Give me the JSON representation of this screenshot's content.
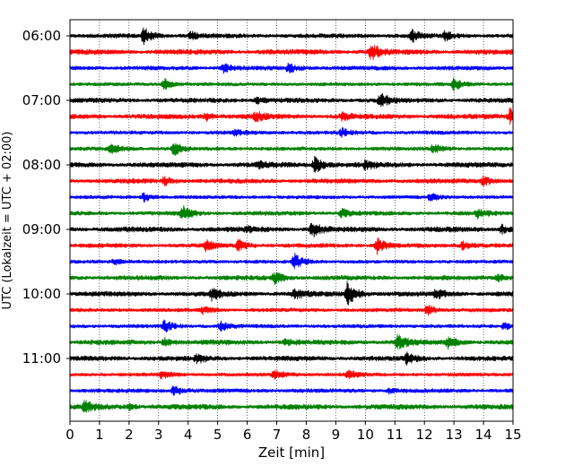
{
  "chart_data": {
    "type": "line",
    "title": "",
    "xlabel": "Zeit  [min]",
    "ylabel": "UTC (Lokalzeit = UTC + 02:00)",
    "xlim": [
      0,
      15
    ],
    "x_ticks": [
      "0",
      "1",
      "2",
      "3",
      "4",
      "5",
      "6",
      "7",
      "8",
      "9",
      "10",
      "11",
      "12",
      "13",
      "14",
      "15"
    ],
    "y_ticks": [
      "06:00",
      "07:00",
      "08:00",
      "09:00",
      "10:00",
      "11:00"
    ],
    "grid": "vertical dotted",
    "row_interval_minutes": 15,
    "colors": [
      "#000000",
      "#ff0000",
      "#0000ff",
      "#008000"
    ],
    "series": [
      {
        "start": "06:00",
        "color": "#000000",
        "events": [
          [
            2.5,
            1.0
          ],
          [
            4.1,
            0.45
          ],
          [
            11.6,
            0.7
          ],
          [
            12.7,
            0.55
          ]
        ]
      },
      {
        "start": "06:15",
        "color": "#ff0000",
        "events": [
          [
            10.2,
            1.0
          ]
        ]
      },
      {
        "start": "06:30",
        "color": "#0000ff",
        "events": [
          [
            5.2,
            0.5
          ],
          [
            7.4,
            0.55
          ]
        ]
      },
      {
        "start": "06:45",
        "color": "#008000",
        "events": [
          [
            3.2,
            0.6
          ],
          [
            13.0,
            0.7
          ]
        ]
      },
      {
        "start": "07:00",
        "color": "#000000",
        "events": [
          [
            10.5,
            0.8
          ],
          [
            6.3,
            0.35
          ]
        ]
      },
      {
        "start": "07:15",
        "color": "#ff0000",
        "events": [
          [
            4.6,
            0.45
          ],
          [
            6.3,
            0.5
          ],
          [
            9.2,
            0.45
          ],
          [
            14.9,
            1.0
          ]
        ]
      },
      {
        "start": "07:30",
        "color": "#0000ff",
        "events": [
          [
            9.2,
            0.45
          ],
          [
            5.6,
            0.3
          ]
        ]
      },
      {
        "start": "07:45",
        "color": "#008000",
        "events": [
          [
            1.4,
            0.6
          ],
          [
            3.5,
            0.9
          ],
          [
            12.3,
            0.5
          ]
        ]
      },
      {
        "start": "08:00",
        "color": "#000000",
        "events": [
          [
            8.3,
            1.0
          ],
          [
            10.0,
            0.5
          ],
          [
            6.4,
            0.3
          ]
        ]
      },
      {
        "start": "08:15",
        "color": "#ff0000",
        "events": [
          [
            3.2,
            0.45
          ],
          [
            14.0,
            0.6
          ]
        ]
      },
      {
        "start": "08:30",
        "color": "#0000ff",
        "events": [
          [
            2.5,
            0.5
          ],
          [
            12.2,
            0.4
          ]
        ]
      },
      {
        "start": "08:45",
        "color": "#008000",
        "events": [
          [
            3.8,
            0.9
          ],
          [
            9.2,
            0.5
          ],
          [
            13.8,
            0.45
          ]
        ]
      },
      {
        "start": "09:00",
        "color": "#000000",
        "events": [
          [
            8.2,
            0.9
          ],
          [
            14.6,
            0.55
          ],
          [
            6.0,
            0.3
          ]
        ]
      },
      {
        "start": "09:15",
        "color": "#ff0000",
        "events": [
          [
            4.6,
            0.6
          ],
          [
            5.7,
            0.7
          ],
          [
            10.4,
            0.9
          ],
          [
            13.3,
            0.5
          ]
        ]
      },
      {
        "start": "09:30",
        "color": "#0000ff",
        "events": [
          [
            7.6,
            0.9
          ],
          [
            1.5,
            0.3
          ]
        ]
      },
      {
        "start": "09:45",
        "color": "#008000",
        "events": [
          [
            6.9,
            0.7
          ],
          [
            14.5,
            0.4
          ]
        ]
      },
      {
        "start": "10:00",
        "color": "#000000",
        "events": [
          [
            4.8,
            0.6
          ],
          [
            7.6,
            0.6
          ],
          [
            9.4,
            1.5
          ],
          [
            12.4,
            0.5
          ]
        ]
      },
      {
        "start": "10:15",
        "color": "#ff0000",
        "events": [
          [
            4.5,
            0.35
          ],
          [
            12.1,
            0.6
          ]
        ]
      },
      {
        "start": "10:30",
        "color": "#0000ff",
        "events": [
          [
            3.2,
            0.7
          ],
          [
            5.1,
            0.6
          ],
          [
            14.7,
            0.4
          ]
        ]
      },
      {
        "start": "10:45",
        "color": "#008000",
        "events": [
          [
            3.2,
            0.5
          ],
          [
            11.1,
            1.0
          ],
          [
            12.8,
            0.6
          ],
          [
            7.3,
            0.35
          ]
        ]
      },
      {
        "start": "11:00",
        "color": "#000000",
        "events": [
          [
            4.3,
            0.5
          ],
          [
            11.4,
            0.55
          ]
        ]
      },
      {
        "start": "11:15",
        "color": "#ff0000",
        "events": [
          [
            3.1,
            0.45
          ],
          [
            6.9,
            0.6
          ],
          [
            9.4,
            0.55
          ]
        ]
      },
      {
        "start": "11:30",
        "color": "#0000ff",
        "events": [
          [
            3.5,
            0.6
          ],
          [
            10.8,
            0.3
          ]
        ]
      },
      {
        "start": "11:45",
        "color": "#008000",
        "events": [
          [
            0.5,
            0.6
          ],
          [
            2.0,
            0.3
          ]
        ]
      }
    ]
  }
}
